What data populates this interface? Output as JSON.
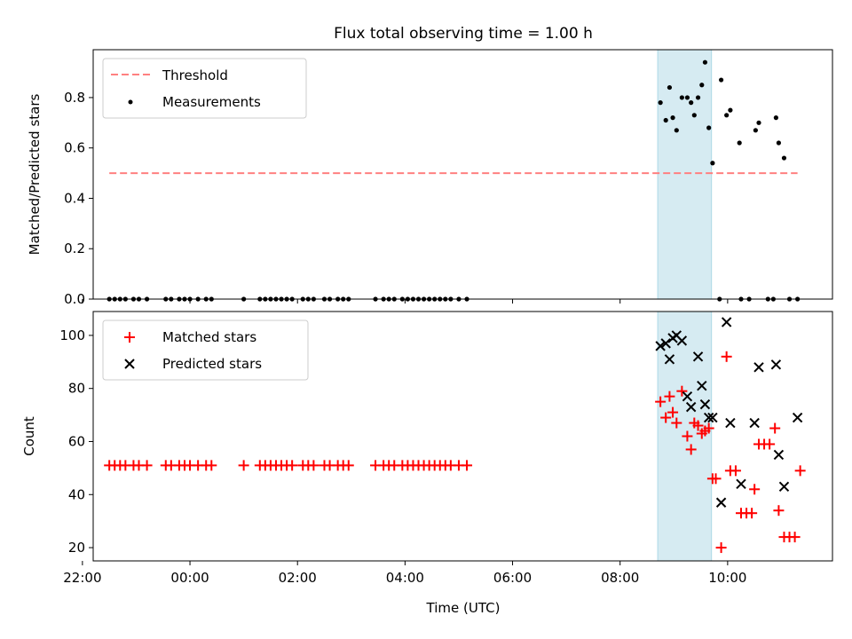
{
  "chart_data": [
    {
      "type": "scatter",
      "title": "Flux total observing time = 1.00 h",
      "xlabel": "",
      "ylabel": "Matched/Predicted stars",
      "xlim": [
        -1.8,
        11.95
      ],
      "ylim": [
        0.0,
        0.99
      ],
      "yticks": [
        "0.0",
        "0.2",
        "0.4",
        "0.6",
        "0.8"
      ],
      "highlight_span": [
        8.7,
        9.7
      ],
      "legend_position": "upper-left",
      "threshold": {
        "name": "Threshold",
        "y": 0.5,
        "x_range": [
          -1.5,
          11.3
        ],
        "color": "#ff8080"
      },
      "measurements": {
        "name": "Measurements",
        "color": "#000000",
        "x": [
          -1.5,
          -1.4,
          -1.3,
          -1.2,
          -1.05,
          -0.95,
          -0.8,
          -0.45,
          -0.35,
          -0.2,
          -0.1,
          0.0,
          0.15,
          0.3,
          0.4,
          1.0,
          1.3,
          1.4,
          1.5,
          1.6,
          1.7,
          1.8,
          1.9,
          2.1,
          2.2,
          2.3,
          2.5,
          2.6,
          2.75,
          2.85,
          2.95,
          3.45,
          3.6,
          3.7,
          3.8,
          3.95,
          4.05,
          4.15,
          4.25,
          4.35,
          4.45,
          4.55,
          4.65,
          4.75,
          4.85,
          5.0,
          5.15,
          9.85,
          10.25,
          10.4,
          10.75,
          10.85,
          11.15,
          11.3,
          8.75,
          8.85,
          8.92,
          8.98,
          9.05,
          9.15,
          9.25,
          9.32,
          9.38,
          9.45,
          9.52,
          9.58,
          9.65,
          9.72,
          9.88,
          9.98,
          10.05,
          10.22,
          10.52,
          10.58,
          10.9,
          10.95,
          11.05
        ],
        "y": [
          0,
          0,
          0,
          0,
          0,
          0,
          0,
          0,
          0,
          0,
          0,
          0,
          0,
          0,
          0,
          0,
          0,
          0,
          0,
          0,
          0,
          0,
          0,
          0,
          0,
          0,
          0,
          0,
          0,
          0,
          0,
          0,
          0,
          0,
          0,
          0,
          0,
          0,
          0,
          0,
          0,
          0,
          0,
          0,
          0,
          0,
          0,
          0,
          0,
          0,
          0,
          0,
          0,
          0,
          0.78,
          0.71,
          0.84,
          0.72,
          0.67,
          0.8,
          0.8,
          0.78,
          0.73,
          0.8,
          0.85,
          0.94,
          0.68,
          0.54,
          0.87,
          0.73,
          0.75,
          0.62,
          0.67,
          0.7,
          0.72,
          0.62,
          0.56
        ]
      }
    },
    {
      "type": "scatter",
      "title": "",
      "xlabel": "Time (UTC)",
      "ylabel": "Count",
      "xlim": [
        -1.8,
        11.95
      ],
      "ylim": [
        15,
        109
      ],
      "yticks": [
        "20",
        "40",
        "60",
        "80",
        "100"
      ],
      "xticks": [
        {
          "value": -2,
          "label": "22:00"
        },
        {
          "value": 0,
          "label": "00:00"
        },
        {
          "value": 2,
          "label": "02:00"
        },
        {
          "value": 4,
          "label": "04:00"
        },
        {
          "value": 6,
          "label": "06:00"
        },
        {
          "value": 8,
          "label": "08:00"
        },
        {
          "value": 10,
          "label": "10:00"
        }
      ],
      "highlight_span": [
        8.7,
        9.7
      ],
      "legend_position": "upper-left",
      "series": [
        {
          "name": "Matched stars",
          "marker": "plus",
          "color": "#ff0000",
          "x": [
            -1.5,
            -1.4,
            -1.3,
            -1.2,
            -1.05,
            -0.95,
            -0.8,
            -0.45,
            -0.35,
            -0.2,
            -0.1,
            0.0,
            0.15,
            0.3,
            0.4,
            1.0,
            1.3,
            1.4,
            1.5,
            1.6,
            1.7,
            1.8,
            1.9,
            2.1,
            2.2,
            2.3,
            2.5,
            2.6,
            2.75,
            2.85,
            2.95,
            3.45,
            3.6,
            3.7,
            3.8,
            3.95,
            4.05,
            4.15,
            4.25,
            4.35,
            4.45,
            4.55,
            4.65,
            4.75,
            4.85,
            5.0,
            5.15,
            8.75,
            8.85,
            8.92,
            8.98,
            9.05,
            9.15,
            9.25,
            9.32,
            9.38,
            9.45,
            9.52,
            9.58,
            9.65,
            9.72,
            9.78,
            9.88,
            9.98,
            10.05,
            10.15,
            10.25,
            10.35,
            10.45,
            10.5,
            10.58,
            10.68,
            10.78,
            10.88,
            10.95,
            11.05,
            11.15,
            11.25,
            11.35
          ],
          "y": [
            51,
            51,
            51,
            51,
            51,
            51,
            51,
            51,
            51,
            51,
            51,
            51,
            51,
            51,
            51,
            51,
            51,
            51,
            51,
            51,
            51,
            51,
            51,
            51,
            51,
            51,
            51,
            51,
            51,
            51,
            51,
            51,
            51,
            51,
            51,
            51,
            51,
            51,
            51,
            51,
            51,
            51,
            51,
            51,
            51,
            51,
            51,
            75,
            69,
            77,
            71,
            67,
            79,
            62,
            57,
            67,
            66,
            63,
            64,
            65,
            46,
            46,
            20,
            92,
            49,
            49,
            33,
            33,
            33,
            42,
            59,
            59,
            59,
            65,
            34,
            24,
            24,
            24,
            49
          ]
        },
        {
          "name": "Predicted stars",
          "marker": "x",
          "color": "#000000",
          "x": [
            8.75,
            8.85,
            8.92,
            8.98,
            9.05,
            9.15,
            9.25,
            9.32,
            9.45,
            9.52,
            9.58,
            9.65,
            9.72,
            9.88,
            9.98,
            10.05,
            10.25,
            10.5,
            10.58,
            10.9,
            10.95,
            11.05,
            11.3
          ],
          "y": [
            96,
            97,
            91,
            99,
            100,
            98,
            77,
            73,
            92,
            81,
            74,
            69,
            69,
            37,
            105,
            67,
            44,
            67,
            88,
            89,
            55,
            43,
            69
          ]
        }
      ]
    }
  ]
}
